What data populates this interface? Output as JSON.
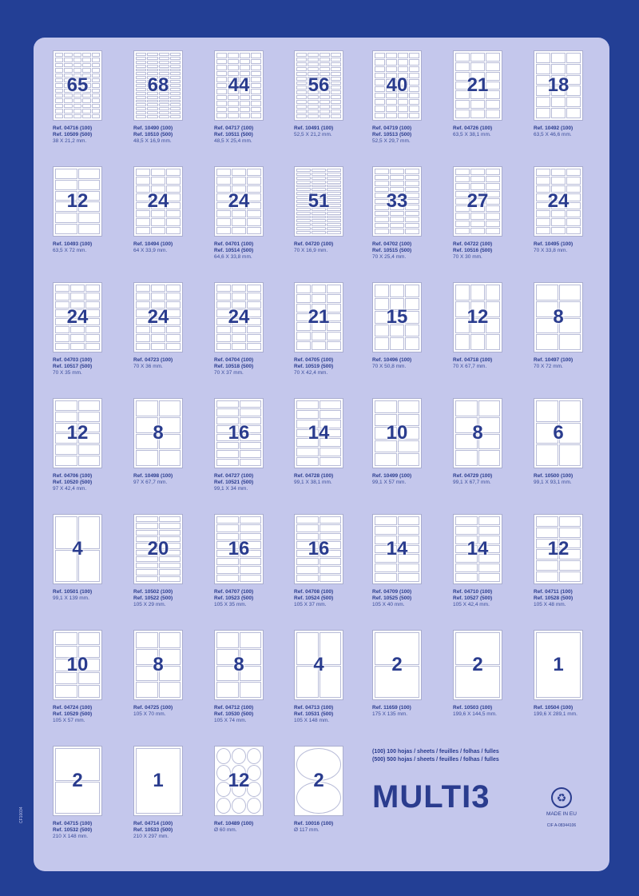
{
  "side_code": "CF10034",
  "items": [
    {
      "count": "65",
      "grid": [
        5,
        13
      ],
      "refs": [
        "Ref. 04716 (100)",
        "Ref. 10509 (500)"
      ],
      "size": "38 X 21,2 mm."
    },
    {
      "count": "68",
      "grid": [
        4,
        17
      ],
      "refs": [
        "Ref. 10490 (100)",
        "Ref. 10510 (500)"
      ],
      "size": "48,5 X 16,9 mm."
    },
    {
      "count": "44",
      "grid": [
        4,
        11
      ],
      "refs": [
        "Ref. 04717 (100)",
        "Ref. 10511 (500)"
      ],
      "size": "48,5 X 25,4 mm."
    },
    {
      "count": "56",
      "grid": [
        4,
        14
      ],
      "refs": [
        "Ref. 10491 (100)"
      ],
      "size": "52,5 X 21,2 mm."
    },
    {
      "count": "40",
      "grid": [
        4,
        10
      ],
      "refs": [
        "Ref. 04719 (100)",
        "Ref. 10513 (500)"
      ],
      "size": "52,5 X 29,7 mm."
    },
    {
      "count": "21",
      "grid": [
        3,
        7
      ],
      "refs": [
        "Ref. 04726 (100)"
      ],
      "size": "63,5 X 38,1 mm."
    },
    {
      "count": "18",
      "grid": [
        3,
        6
      ],
      "refs": [
        "Ref. 10492 (100)"
      ],
      "size": "63,5 X 46,6 mm."
    },
    {
      "count": "12",
      "grid": [
        2,
        6
      ],
      "refs": [
        "Ref. 10493 (100)"
      ],
      "size": "63,5 X 72 mm."
    },
    {
      "count": "24",
      "grid": [
        3,
        8
      ],
      "refs": [
        "Ref. 10494 (100)"
      ],
      "size": "64 X 33,9 mm."
    },
    {
      "count": "24",
      "grid": [
        3,
        8
      ],
      "refs": [
        "Ref. 04701 (100)",
        "Ref. 10514 (500)"
      ],
      "size": "64,6 X 33,8 mm."
    },
    {
      "count": "51",
      "grid": [
        3,
        17
      ],
      "refs": [
        "Ref. 04720 (100)"
      ],
      "size": "70 X 16,9 mm."
    },
    {
      "count": "33",
      "grid": [
        3,
        11
      ],
      "refs": [
        "Ref. 04702 (100)",
        "Ref. 10515 (500)"
      ],
      "size": "70 X 25,4 mm."
    },
    {
      "count": "27",
      "grid": [
        3,
        9
      ],
      "refs": [
        "Ref. 04722 (100)",
        "Ref. 10516 (500)"
      ],
      "size": "70 X 30 mm."
    },
    {
      "count": "24",
      "grid": [
        3,
        8
      ],
      "refs": [
        "Ref. 10495 (100)"
      ],
      "size": "70 X 33,8 mm."
    },
    {
      "count": "24",
      "grid": [
        3,
        8
      ],
      "refs": [
        "Ref. 04703 (100)",
        "Ref. 10517 (500)"
      ],
      "size": "70 X 35 mm."
    },
    {
      "count": "24",
      "grid": [
        3,
        8
      ],
      "refs": [
        "Ref. 04723 (100)"
      ],
      "size": "70 X 36 mm."
    },
    {
      "count": "24",
      "grid": [
        3,
        8
      ],
      "refs": [
        "Ref. 04704 (100)",
        "Ref. 10518 (500)"
      ],
      "size": "70 X 37 mm."
    },
    {
      "count": "21",
      "grid": [
        3,
        7
      ],
      "refs": [
        "Ref. 04705 (100)",
        "Ref. 10519 (500)"
      ],
      "size": "70 X 42,4 mm."
    },
    {
      "count": "15",
      "grid": [
        3,
        5
      ],
      "refs": [
        "Ref. 10496 (100)"
      ],
      "size": "70 X 50,8 mm."
    },
    {
      "count": "12",
      "grid": [
        3,
        4
      ],
      "refs": [
        "Ref. 04718 (100)"
      ],
      "size": "70 X 67,7 mm."
    },
    {
      "count": "8",
      "grid": [
        2,
        4
      ],
      "refs": [
        "Ref. 10497 (100)"
      ],
      "size": "70 X 72 mm."
    },
    {
      "count": "12",
      "grid": [
        2,
        6
      ],
      "refs": [
        "Ref. 04706 (100)",
        "Ref. 10520 (500)"
      ],
      "size": "97 X 42,4 mm."
    },
    {
      "count": "8",
      "grid": [
        2,
        4
      ],
      "refs": [
        "Ref. 10498 (100)"
      ],
      "size": "97 X 67,7 mm."
    },
    {
      "count": "16",
      "grid": [
        2,
        8
      ],
      "refs": [
        "Ref. 04727 (100)",
        "Ref. 10521 (500)"
      ],
      "size": "99,1 X 34 mm."
    },
    {
      "count": "14",
      "grid": [
        2,
        7
      ],
      "refs": [
        "Ref. 04728 (100)"
      ],
      "size": "99,1 X 38,1 mm."
    },
    {
      "count": "10",
      "grid": [
        2,
        5
      ],
      "refs": [
        "Ref. 10499 (100)"
      ],
      "size": "99,1 X 57 mm."
    },
    {
      "count": "8",
      "grid": [
        2,
        4
      ],
      "refs": [
        "Ref. 04729 (100)"
      ],
      "size": "99,1 X 67,7 mm."
    },
    {
      "count": "6",
      "grid": [
        2,
        3
      ],
      "refs": [
        "Ref. 10500 (100)"
      ],
      "size": "99,1 X 93,1 mm."
    },
    {
      "count": "4",
      "grid": [
        2,
        2
      ],
      "refs": [
        "Ref. 10501 (100)"
      ],
      "size": "99,1 X 139 mm."
    },
    {
      "count": "20",
      "grid": [
        2,
        10
      ],
      "refs": [
        "Ref. 10502 (100)",
        "Ref. 10522 (500)"
      ],
      "size": "105 X 29 mm."
    },
    {
      "count": "16",
      "grid": [
        2,
        8
      ],
      "refs": [
        "Ref. 04707 (100)",
        "Ref. 10523 (500)"
      ],
      "size": "105 X 35 mm."
    },
    {
      "count": "16",
      "grid": [
        2,
        8
      ],
      "refs": [
        "Ref. 04708 (100)",
        "Ref. 10524 (500)"
      ],
      "size": "105 X 37 mm."
    },
    {
      "count": "14",
      "grid": [
        2,
        7
      ],
      "refs": [
        "Ref. 04709 (100)",
        "Ref. 10525 (500)"
      ],
      "size": "105 X 40 mm."
    },
    {
      "count": "14",
      "grid": [
        2,
        7
      ],
      "refs": [
        "Ref. 04710 (100)",
        "Ref. 10527 (500)"
      ],
      "size": "105 X 42,4 mm."
    },
    {
      "count": "12",
      "grid": [
        2,
        6
      ],
      "refs": [
        "Ref. 04711 (100)",
        "Ref. 10528 (500)"
      ],
      "size": "105 X 48 mm."
    },
    {
      "count": "10",
      "grid": [
        2,
        5
      ],
      "refs": [
        "Ref. 04724 (100)",
        "Ref. 10529 (500)"
      ],
      "size": "105 X 57 mm."
    },
    {
      "count": "8",
      "grid": [
        2,
        4
      ],
      "refs": [
        "Ref. 04725 (100)"
      ],
      "size": "105 X 70 mm."
    },
    {
      "count": "8",
      "grid": [
        2,
        4
      ],
      "refs": [
        "Ref. 04712 (100)",
        "Ref. 10530 (500)"
      ],
      "size": "105 X 74 mm."
    },
    {
      "count": "4",
      "grid": [
        2,
        2
      ],
      "refs": [
        "Ref. 04713 (100)",
        "Ref. 10531 (500)"
      ],
      "size": "105 X 148 mm."
    },
    {
      "count": "2",
      "grid": [
        1,
        2
      ],
      "refs": [
        "Ref. 11659 (100)"
      ],
      "size": "175 X 135 mm."
    },
    {
      "count": "2",
      "grid": [
        1,
        2
      ],
      "refs": [
        "Ref. 10503 (100)"
      ],
      "size": "199,6 X 144,5 mm."
    },
    {
      "count": "1",
      "grid": [
        1,
        1
      ],
      "refs": [
        "Ref. 10504 (100)"
      ],
      "size": "199,6 X 289,1 mm."
    },
    {
      "count": "2",
      "grid": [
        1,
        2
      ],
      "refs": [
        "Ref. 04715 (100)",
        "Ref. 10532 (500)"
      ],
      "size": "210 X 148 mm."
    },
    {
      "count": "1",
      "grid": [
        1,
        1
      ],
      "refs": [
        "Ref. 04714 (100)",
        "Ref. 10533 (500)"
      ],
      "size": "210 X 297 mm."
    },
    {
      "count": "12",
      "grid": [
        3,
        4
      ],
      "shape": "circle",
      "refs": [
        "Ref. 10489 (100)"
      ],
      "size": "Ø 60 mm."
    },
    {
      "count": "2",
      "grid": [
        1,
        2
      ],
      "shape": "circle",
      "refs": [
        "Ref. 10016 (100)"
      ],
      "size": "Ø 117 mm."
    }
  ],
  "legend": [
    "(100) 100 hojas / sheets / feuilles / folhas / fulles",
    "(500) 500 hojas / sheets / feuilles / folhas / fulles"
  ],
  "brand": "MULTI3",
  "made_in": "MADE IN EU",
  "cif": "CIF A-08344106"
}
